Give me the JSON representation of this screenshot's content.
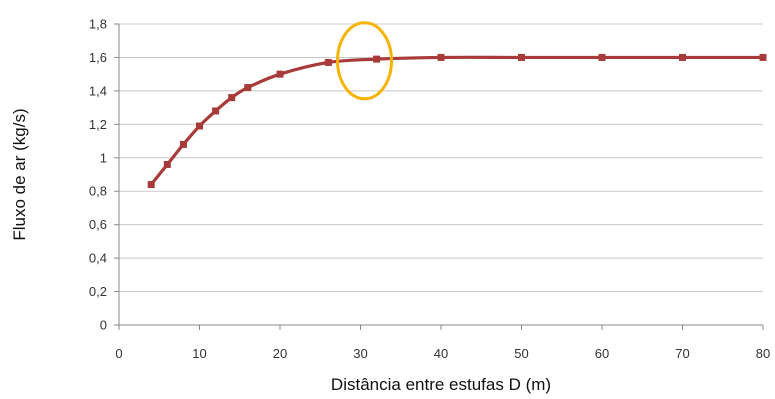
{
  "chart_data": {
    "type": "line",
    "xlabel": "Distância entre estufas D (m)",
    "ylabel": "Fluxo de ar (kg/s)",
    "xlim": [
      0,
      80
    ],
    "ylim": [
      0,
      1.8
    ],
    "x_ticks": [
      0,
      10,
      20,
      30,
      40,
      50,
      60,
      70,
      80
    ],
    "y_ticks": [
      0,
      0.2,
      0.4,
      0.6,
      0.8,
      1,
      1.2,
      1.4,
      1.6,
      1.8
    ],
    "x_tick_labels": [
      "0",
      "10",
      "20",
      "30",
      "40",
      "50",
      "60",
      "70",
      "80"
    ],
    "y_tick_labels": [
      "0",
      "0,2",
      "0,4",
      "0,6",
      "0,8",
      "1",
      "1,2",
      "1,4",
      "1,6",
      "1,8"
    ],
    "grid": "horizontal",
    "series": [
      {
        "color": "#a83a3a",
        "marker": "square",
        "x": [
          4,
          6,
          8,
          10,
          12,
          14,
          16,
          20,
          26,
          32,
          40,
          50,
          60,
          70,
          80
        ],
        "y": [
          0.84,
          0.96,
          1.08,
          1.19,
          1.28,
          1.36,
          1.42,
          1.5,
          1.57,
          1.59,
          1.6,
          1.6,
          1.6,
          1.6,
          1.6
        ]
      }
    ],
    "annotations": [
      {
        "shape": "ellipse",
        "color": "#f5b400",
        "center": [
          30.5,
          1.58
        ]
      }
    ]
  }
}
